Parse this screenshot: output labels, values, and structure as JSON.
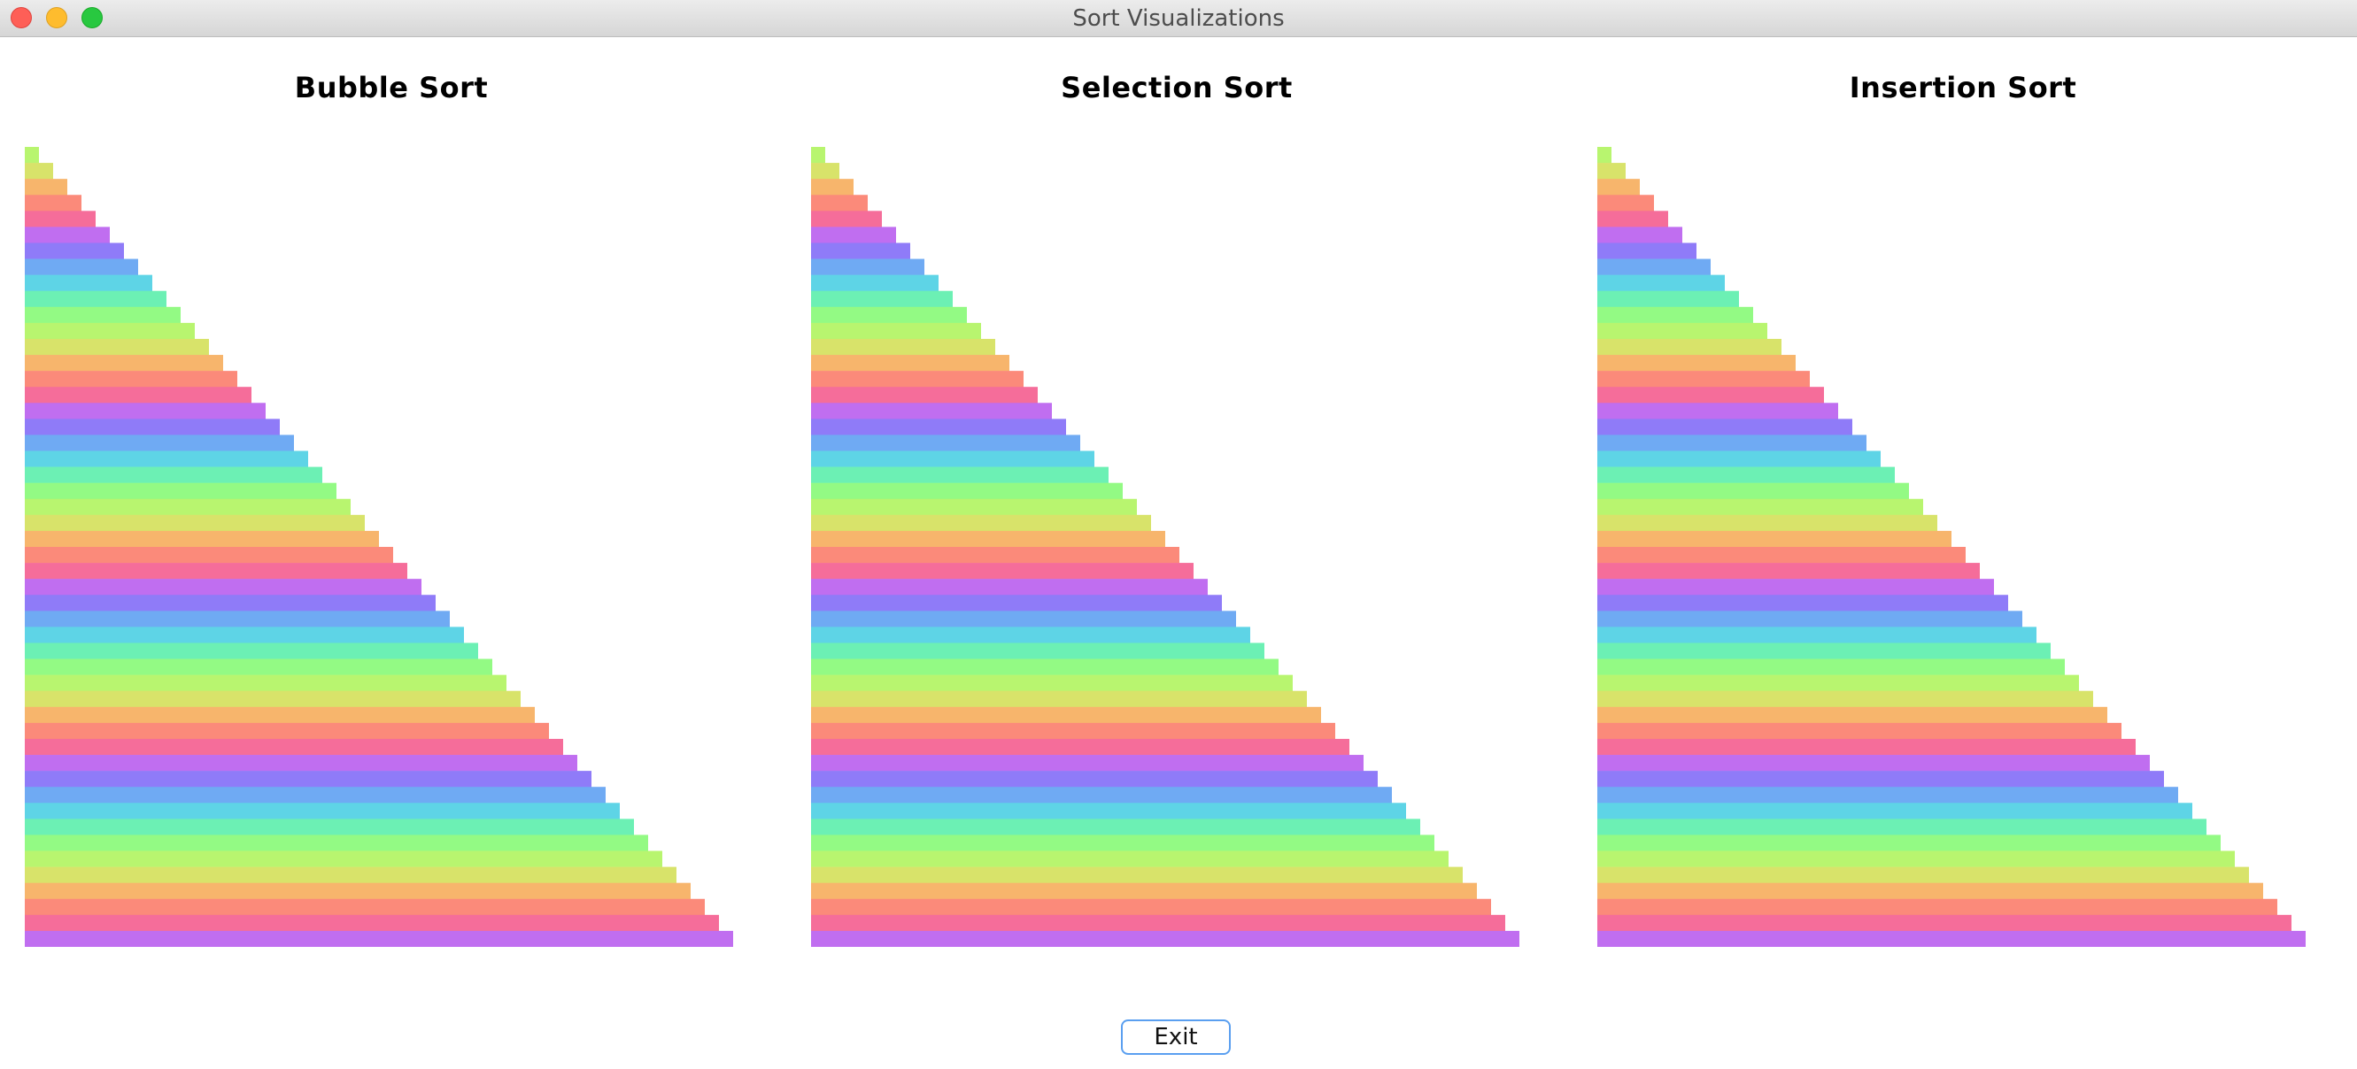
{
  "window": {
    "title": "Sort Visualizations"
  },
  "panels": [
    {
      "title": "Bubble Sort"
    },
    {
      "title": "Selection Sort"
    },
    {
      "title": "Insertion Sort"
    }
  ],
  "bars": {
    "count": 50,
    "state": "sorted",
    "values": [
      1,
      2,
      3,
      4,
      5,
      6,
      7,
      8,
      9,
      10,
      11,
      12,
      13,
      14,
      15,
      16,
      17,
      18,
      19,
      20,
      21,
      22,
      23,
      24,
      25,
      26,
      27,
      28,
      29,
      30,
      31,
      32,
      33,
      34,
      35,
      36,
      37,
      38,
      39,
      40,
      41,
      42,
      43,
      44,
      45,
      46,
      47,
      48,
      49,
      50
    ],
    "palette_cycle": [
      "#b8f56f",
      "#d8e36a",
      "#f7b56c",
      "#fb8a7a",
      "#f56d9a",
      "#c06ef0",
      "#8f7bf8",
      "#6faaf3",
      "#5ed4e6",
      "#6cf0b4",
      "#93fa84"
    ]
  },
  "buttons": {
    "exit": "Exit"
  }
}
